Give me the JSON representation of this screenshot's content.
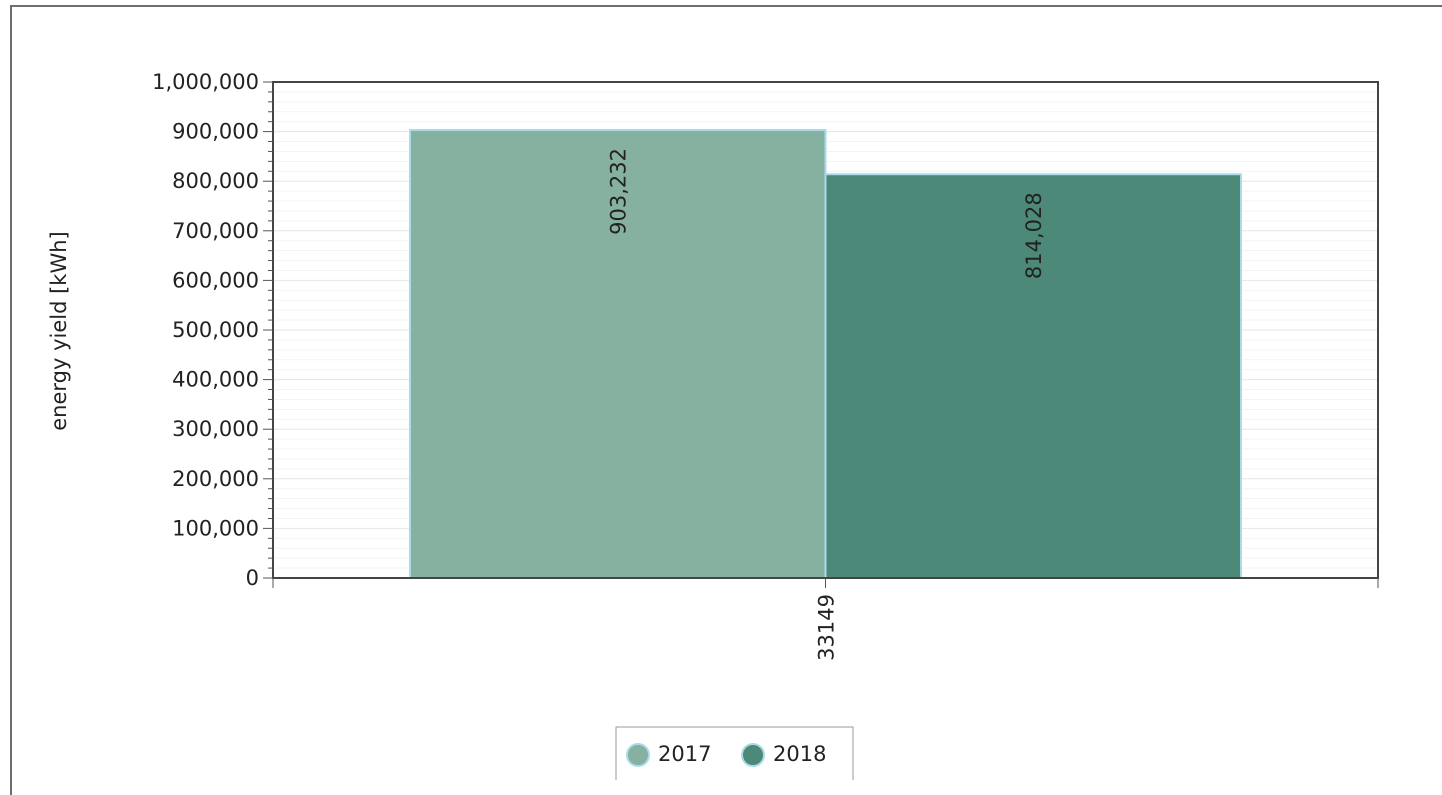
{
  "chart_data": {
    "type": "bar",
    "categories": [
      "33149"
    ],
    "series": [
      {
        "name": "2017",
        "values": [
          903232
        ],
        "color": "#86b1a1",
        "value_label": "903,232"
      },
      {
        "name": "2018",
        "values": [
          814028
        ],
        "color": "#4c8978",
        "value_label": "814,028"
      }
    ],
    "ylabel": "energy yield [kWh]",
    "xlabel": "",
    "ylim": [
      0,
      1000000
    ],
    "yticks": [
      0,
      100000,
      200000,
      300000,
      400000,
      500000,
      600000,
      700000,
      800000,
      900000,
      1000000
    ],
    "ytick_labels": [
      "0",
      "100,000",
      "200,000",
      "300,000",
      "400,000",
      "500,000",
      "600,000",
      "700,000",
      "800,000",
      "900,000",
      "1,000,000"
    ],
    "grid": true,
    "legend_position": "bottom-center",
    "bar_edge_color": "#a9dbe8"
  }
}
